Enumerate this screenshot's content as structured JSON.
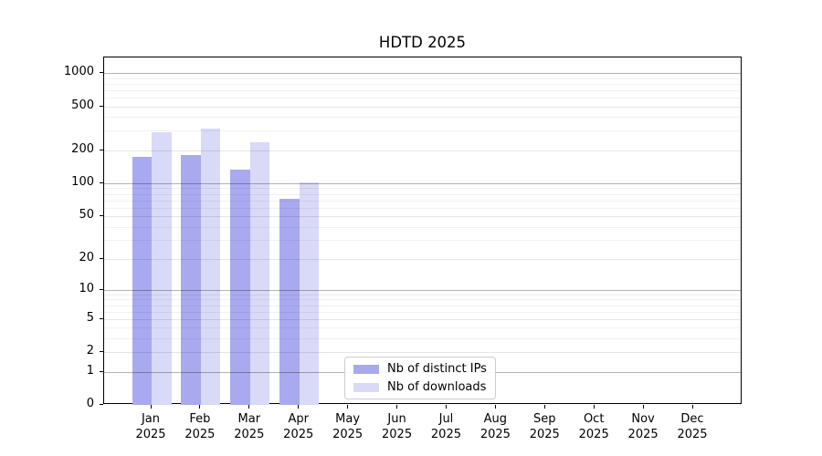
{
  "window": {
    "title": "HDTD 2025"
  },
  "chart_data": {
    "type": "bar",
    "title": "HDTD 2025",
    "categories": [
      "Jan",
      "Feb",
      "Mar",
      "Apr",
      "May",
      "Jun",
      "Jul",
      "Aug",
      "Sep",
      "Oct",
      "Nov",
      "Dec"
    ],
    "year_label": "2025",
    "series": [
      {
        "name": "Nb of distinct IPs",
        "color": "#a9a9f0",
        "values": [
          175,
          180,
          132,
          72,
          null,
          null,
          null,
          null,
          null,
          null,
          null,
          null
        ]
      },
      {
        "name": "Nb of downloads",
        "color": "#d9d9f8",
        "values": [
          290,
          315,
          237,
          102,
          null,
          null,
          null,
          null,
          null,
          null,
          null,
          null
        ]
      }
    ],
    "yscale": "log10(1+v)",
    "ylim": [
      0,
      1380
    ],
    "y_ticks": [
      0,
      1,
      2,
      5,
      10,
      20,
      50,
      100,
      200,
      500,
      1000
    ],
    "y_decade_ticks": [
      1,
      10,
      100,
      1000
    ],
    "y_minor_ticks": [
      3,
      4,
      6,
      7,
      8,
      9,
      30,
      40,
      60,
      70,
      80,
      90,
      300,
      400,
      600,
      700,
      800,
      900
    ],
    "grid": true,
    "legend_position": "lower center",
    "axis_color": "#000000",
    "background_color": "#ffffff"
  }
}
